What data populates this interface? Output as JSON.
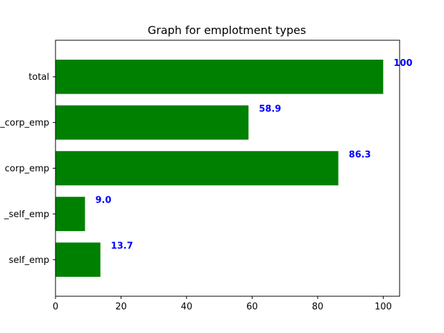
{
  "chart_data": {
    "type": "bar",
    "orientation": "horizontal",
    "title": "Graph for emplotment types",
    "categories": [
      "self_emp",
      "_self_emp",
      "corp_emp",
      "_corp_emp",
      "total"
    ],
    "values": [
      13.7,
      9.0,
      86.3,
      58.9,
      100
    ],
    "data_labels": [
      "13.7",
      "9.0",
      "86.3",
      "58.9",
      "100"
    ],
    "xlim": [
      0,
      105
    ],
    "xticks": [
      0,
      20,
      40,
      60,
      80,
      100
    ],
    "xlabel": "",
    "ylabel": "",
    "grid": false,
    "bar_color": "#008000",
    "label_color": "#0000ff"
  }
}
